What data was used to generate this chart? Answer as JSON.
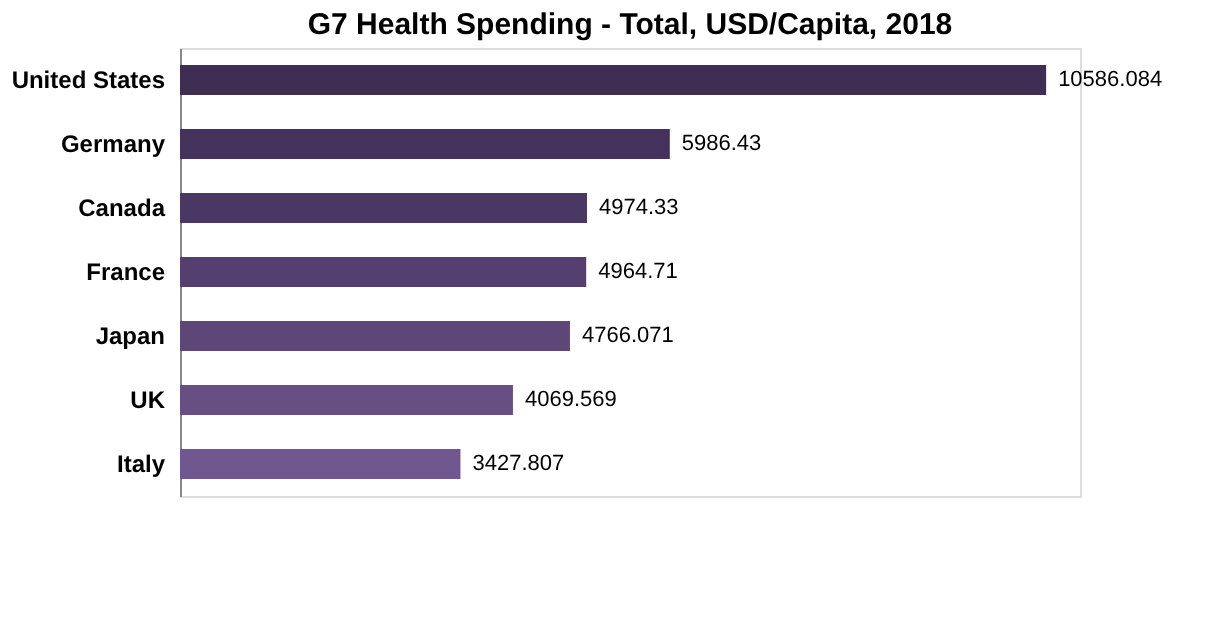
{
  "chart_data": {
    "type": "bar",
    "orientation": "horizontal",
    "title": "G7 Health Spending - Total, USD/Capita, 2018",
    "categories": [
      "United States",
      "Germany",
      "Canada",
      "France",
      "Japan",
      "UK",
      "Italy"
    ],
    "values": [
      10586.084,
      5986.43,
      4974.33,
      4964.71,
      4766.071,
      4069.569,
      3427.807
    ],
    "colors": [
      "#3f2d54",
      "#45325c",
      "#4b3763",
      "#553f6e",
      "#5e4777",
      "#674f83",
      "#70578f"
    ],
    "data_labels": true
  }
}
